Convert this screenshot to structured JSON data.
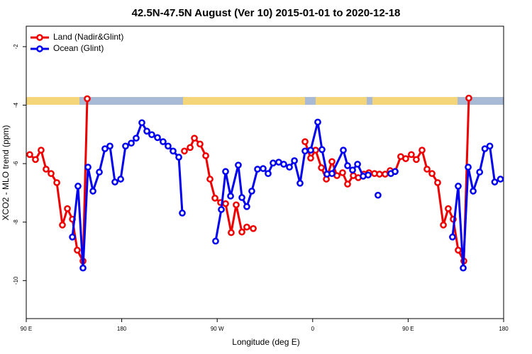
{
  "chart_data": {
    "type": "line",
    "title": "42.5N-47.5N August (Ver 10)   2015-01-01 to 2020-12-18",
    "x_label": "Longitude (deg E)",
    "y_label": "XCO2 - MLO trend (ppm)",
    "xlim": [
      90,
      540
    ],
    "ylim": [
      -11.3,
      -1.3
    ],
    "xticks": [
      {
        "value": 90,
        "label": "90 E"
      },
      180,
      {
        "value": 270,
        "label": "90 W"
      },
      {
        "value": 360,
        "label": "0"
      },
      {
        "value": 450,
        "label": "90 E"
      },
      {
        "value": 540,
        "label": "180"
      }
    ],
    "yticks": [
      -10,
      -8,
      -6,
      -4,
      -2
    ],
    "legend": "top-left",
    "series": [
      {
        "name": "Land (Nadir&Glint)",
        "color": "#ee0000",
        "x": [
          93.3,
          98.7,
          104.0,
          108.7,
          113.4,
          118.8,
          124.1,
          128.8,
          133.5,
          138.1,
          143.5,
          147.5,
          null,
          239.1,
          244.5,
          248.5,
          253.8,
          259.2,
          263.2,
          267.9,
          273.2,
          277.9,
          283.2,
          287.9,
          293.3,
          297.9,
          304.0,
          null,
          352.8,
          358.1,
          362.8,
          368.2,
          372.9,
          378.2,
          382.9,
          388.2,
          392.9,
          398.3,
          403.0,
          408.3,
          413.0,
          418.3,
          423.0,
          428.3,
          433.0,
          437.7,
          443.0,
          447.7,
          453.0,
          457.7,
          463.1,
          467.8,
          472.5,
          477.8,
          483.2,
          487.8,
          492.5,
          497.2,
          502.5,
          507.2
        ],
        "values": [
          -5.69,
          -5.86,
          -5.54,
          -6.19,
          -6.34,
          -6.65,
          -8.1,
          -7.54,
          -7.9,
          -8.96,
          -9.33,
          -3.78,
          null,
          -5.57,
          -5.45,
          -5.13,
          -5.33,
          -5.73,
          -6.53,
          -7.18,
          -7.33,
          -7.37,
          -8.36,
          -7.41,
          -8.34,
          -8.17,
          -8.22,
          null,
          -5.25,
          -5.81,
          -5.54,
          -6.14,
          -6.53,
          -5.93,
          -6.41,
          -6.31,
          -6.7,
          -6.41,
          -6.48,
          -6.36,
          -6.31,
          -6.34,
          -6.36,
          -6.36,
          -6.24,
          -6.27,
          -5.76,
          -5.83,
          -5.69,
          -5.86,
          -5.54,
          -6.19,
          -6.34,
          -6.65,
          -8.1,
          -7.54,
          -7.9,
          -8.96,
          -9.33,
          -3.76
        ]
      },
      {
        "name": "Ocean (Glint)",
        "color": "#0000ee",
        "x": [
          133.5,
          138.8,
          143.5,
          148.2,
          152.9,
          158.9,
          164.2,
          168.9,
          173.6,
          179.0,
          183.6,
          189.0,
          193.6,
          199.0,
          203.7,
          208.3,
          213.7,
          219.0,
          223.7,
          228.4,
          233.8,
          237.1,
          null,
          268.5,
          273.9,
          277.9,
          282.6,
          289.9,
          293.3,
          297.9,
          302.6,
          308.0,
          313.3,
          318.0,
          322.7,
          328.0,
          332.7,
          338.1,
          342.8,
          348.1,
          352.8,
          358.1,
          364.8,
          368.8,
          373.5,
          378.2,
          388.9,
          392.9,
          397.6,
          402.3,
          407.6,
          412.3,
          null,
          421.6,
          null,
          433.7,
          437.7,
          null,
          491.8,
          497.2,
          501.9,
          506.6,
          511.3,
          517.4,
          522.3,
          527.0,
          531.6,
          537.0
        ],
        "values": [
          -8.51,
          -6.77,
          -9.57,
          -6.12,
          -6.94,
          -6.29,
          -5.49,
          -5.4,
          -6.63,
          -6.53,
          -5.4,
          -5.3,
          -5.13,
          -4.6,
          -4.89,
          -5.01,
          -5.11,
          -5.25,
          -5.4,
          -5.57,
          -5.78,
          -7.69,
          null,
          -8.65,
          -7.57,
          -6.27,
          -7.11,
          -6.05,
          -7.16,
          -7.47,
          -6.94,
          -6.19,
          -6.17,
          -6.34,
          -5.98,
          -5.95,
          -6.02,
          -6.12,
          -5.9,
          -6.67,
          -5.57,
          -5.54,
          -4.58,
          -5.52,
          -6.36,
          -6.34,
          -5.54,
          -6.07,
          -6.22,
          -6.02,
          -6.43,
          -6.39,
          null,
          -7.08,
          null,
          -6.34,
          -6.27,
          null,
          -8.51,
          -6.77,
          -9.57,
          -6.12,
          -6.94,
          -6.29,
          -5.49,
          -5.4,
          -6.63,
          -6.53
        ]
      }
    ]
  }
}
